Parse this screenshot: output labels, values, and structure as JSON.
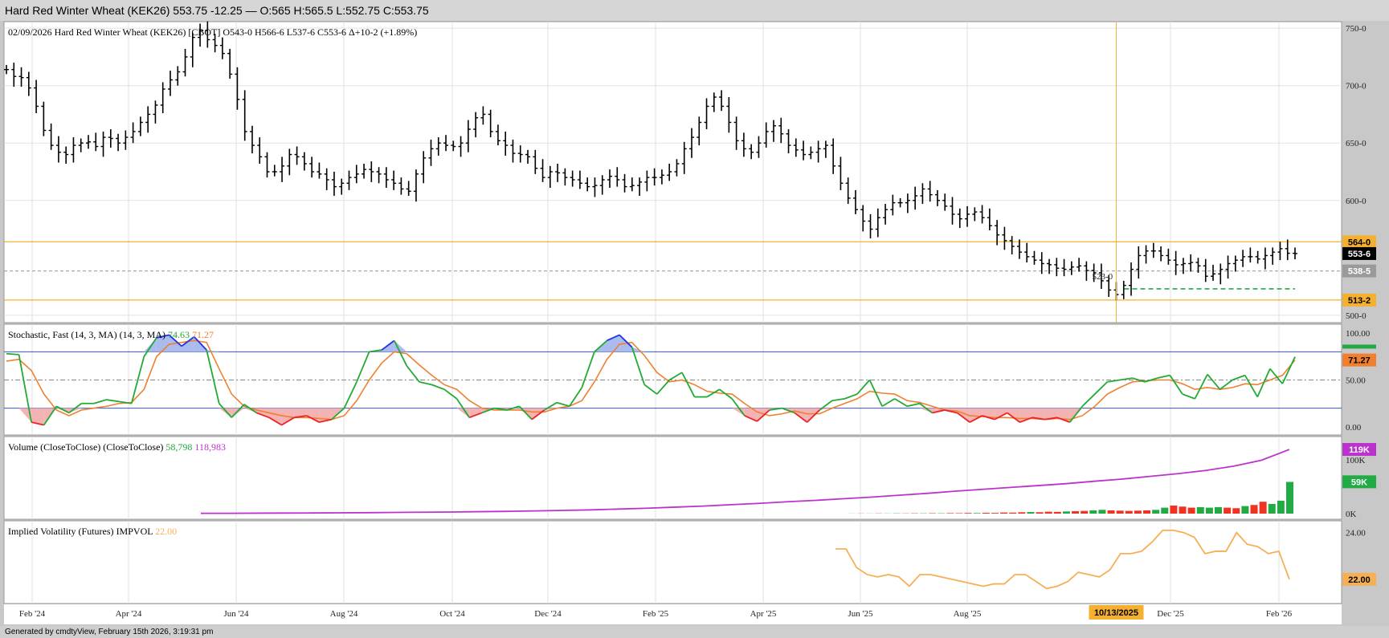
{
  "window": {
    "title": "Hard Red Winter Wheat (KEK26) 553.75 -12.25 — O:565 H:565.5 L:552.75 C:553.75"
  },
  "footer": {
    "generated": "Generated by cmdtyView, February 15th 2026, 3:19:31 pm"
  },
  "colors": {
    "up": "#22aa44",
    "down": "#ee3322",
    "stoch_k": "#22aa33",
    "stoch_d": "#f08030",
    "volume_ma": "#bb33cc",
    "impvol": "#f5b055",
    "level_line": "#f5b030",
    "band": "#3355cc"
  },
  "chart_data": [
    {
      "type": "ohlc",
      "title": "02/09/2026 Hard Red Winter Wheat (KEK26) [CBOT]",
      "header": {
        "date": "02/09/2026",
        "name": "Hard Red Winter Wheat (KEK26) [CBOT]",
        "open": "O543-0",
        "high": "H566-6",
        "low": "L537-6",
        "close": "C553-6",
        "change": "Δ+10-2 (+1.89%)"
      },
      "x_labels": [
        "Feb '24",
        "Apr '24",
        "Jun '24",
        "Aug '24",
        "Oct '24",
        "Dec '24",
        "Feb '25",
        "Apr '25",
        "Jun '25",
        "Aug '25",
        "Dec '25",
        "Feb '26"
      ],
      "y_ticks": [
        "750-0",
        "700-0",
        "650-0",
        "600-0",
        "500-0"
      ],
      "ylim": [
        495,
        755
      ],
      "price_tags": [
        {
          "label": "564-0",
          "value": 564.0,
          "style": "orange"
        },
        {
          "label": "553-6",
          "value": 553.75,
          "style": "black"
        },
        {
          "label": "538-5",
          "value": 538.6,
          "style": "gray"
        },
        {
          "label": "513-2",
          "value": 513.25,
          "style": "orange"
        }
      ],
      "horizontal_lines": [
        {
          "value": 564.0,
          "style": "orange"
        },
        {
          "value": 513.25,
          "style": "orange"
        },
        {
          "value": 538.6,
          "style": "gray-dashed"
        }
      ],
      "cursor_date": "10/13/2025",
      "annotation": "523-0",
      "weekly_closes": [
        714,
        708,
        707,
        698,
        682,
        661,
        648,
        642,
        640,
        648,
        650,
        651,
        647,
        655,
        654,
        650,
        655,
        660,
        668,
        675,
        683,
        697,
        705,
        712,
        725,
        742,
        748,
        740,
        735,
        728,
        710,
        688,
        660,
        648,
        638,
        625,
        625,
        630,
        640,
        638,
        632,
        625,
        623,
        618,
        612,
        615,
        620,
        623,
        627,
        625,
        623,
        618,
        615,
        610,
        608,
        623,
        637,
        645,
        650,
        648,
        647,
        650,
        662,
        672,
        675,
        660,
        652,
        648,
        641,
        640,
        638,
        628,
        620,
        625,
        624,
        620,
        618,
        615,
        612,
        613,
        618,
        621,
        618,
        612,
        613,
        616,
        620,
        620,
        622,
        625,
        632,
        645,
        655,
        668,
        682,
        690,
        682,
        668,
        652,
        645,
        642,
        650,
        660,
        665,
        658,
        648,
        644,
        640,
        642,
        645,
        648,
        630,
        615,
        602,
        592,
        582,
        575,
        585,
        592,
        598,
        598,
        600,
        604,
        610,
        605,
        600,
        595,
        588,
        584,
        588,
        590,
        585,
        578,
        570,
        565,
        560,
        555,
        551,
        548,
        545,
        544,
        541,
        540,
        542,
        543,
        539,
        537,
        530,
        522,
        518,
        526,
        540,
        552,
        556,
        556,
        552,
        548,
        544,
        545,
        546,
        543,
        534,
        536,
        540,
        545,
        548,
        551,
        551,
        549,
        552,
        555,
        558,
        554,
        553.75
      ]
    },
    {
      "type": "line",
      "title": "Stochastic, Fast (14, 3, MA)",
      "params": "(14, 3, MA)",
      "k_value": "74.63",
      "d_value": "71.27",
      "y_ticks": [
        "100.00",
        "50.00",
        "0.00"
      ],
      "ylim": [
        0,
        100
      ],
      "bands": [
        80,
        20
      ],
      "midline": 50,
      "tag": "71.27",
      "k_series": [
        78,
        77,
        5,
        2,
        22,
        15,
        25,
        25,
        29,
        27,
        25,
        75,
        95,
        98,
        86,
        96,
        82,
        25,
        10,
        24,
        15,
        10,
        2,
        10,
        12,
        5,
        8,
        20,
        48,
        80,
        82,
        92,
        65,
        48,
        45,
        40,
        30,
        10,
        15,
        20,
        18,
        22,
        8,
        18,
        26,
        22,
        42,
        80,
        92,
        98,
        85,
        45,
        35,
        50,
        58,
        32,
        32,
        40,
        30,
        12,
        6,
        18,
        20,
        15,
        5,
        18,
        28,
        30,
        35,
        50,
        22,
        30,
        22,
        25,
        15,
        18,
        15,
        5,
        12,
        8,
        15,
        5,
        10,
        8,
        10,
        5,
        22,
        35,
        48,
        50,
        52,
        48,
        52,
        55,
        35,
        30,
        56,
        40,
        50,
        55,
        32,
        62,
        46,
        74.63
      ],
      "d_series": [
        70,
        72,
        60,
        35,
        18,
        12,
        18,
        20,
        22,
        25,
        26,
        40,
        75,
        88,
        90,
        92,
        90,
        62,
        35,
        22,
        18,
        15,
        12,
        10,
        10,
        9,
        8,
        12,
        28,
        50,
        68,
        80,
        78,
        66,
        55,
        45,
        40,
        28,
        20,
        18,
        18,
        18,
        16,
        16,
        20,
        22,
        28,
        48,
        72,
        88,
        90,
        76,
        58,
        48,
        50,
        45,
        38,
        36,
        35,
        25,
        16,
        12,
        14,
        17,
        14,
        14,
        20,
        25,
        30,
        38,
        36,
        35,
        28,
        26,
        22,
        18,
        17,
        12,
        11,
        10,
        10,
        9,
        9,
        8,
        9,
        8,
        12,
        22,
        35,
        42,
        48,
        49,
        50,
        50,
        46,
        40,
        42,
        40,
        42,
        46,
        45,
        50,
        55,
        71.27
      ]
    },
    {
      "type": "bar",
      "title": "Volume (CloseToClose)",
      "params": "(CloseToClose)",
      "volume_value": "58,798",
      "ma_value": "118,983",
      "y_ticks": [
        "100K",
        "0K"
      ],
      "ylim": [
        0,
        125000
      ],
      "tags": [
        {
          "label": "119K",
          "value": 119000
        },
        {
          "label": "59K",
          "value": 59000
        }
      ],
      "bars": [
        [
          200,
          "up"
        ],
        [
          300,
          "down"
        ],
        [
          250,
          "up"
        ],
        [
          400,
          "down"
        ],
        [
          300,
          "up"
        ],
        [
          500,
          "up"
        ],
        [
          400,
          "down"
        ],
        [
          600,
          "down"
        ],
        [
          500,
          "up"
        ],
        [
          700,
          "down"
        ],
        [
          600,
          "up"
        ],
        [
          900,
          "down"
        ],
        [
          800,
          "down"
        ],
        [
          1200,
          "down"
        ],
        [
          1000,
          "up"
        ],
        [
          1500,
          "down"
        ],
        [
          1300,
          "down"
        ],
        [
          2000,
          "down"
        ],
        [
          1800,
          "down"
        ],
        [
          2500,
          "down"
        ],
        [
          3000,
          "up"
        ],
        [
          2600,
          "down"
        ],
        [
          3500,
          "down"
        ],
        [
          3200,
          "down"
        ],
        [
          4000,
          "up"
        ],
        [
          4500,
          "down"
        ],
        [
          5000,
          "down"
        ],
        [
          6000,
          "up"
        ],
        [
          7000,
          "up"
        ],
        [
          6000,
          "down"
        ],
        [
          5500,
          "down"
        ],
        [
          5000,
          "down"
        ],
        [
          5500,
          "down"
        ],
        [
          6000,
          "down"
        ],
        [
          7000,
          "up"
        ],
        [
          11000,
          "up"
        ],
        [
          15000,
          "down"
        ],
        [
          13000,
          "down"
        ],
        [
          11000,
          "down"
        ],
        [
          12000,
          "up"
        ],
        [
          11000,
          "up"
        ],
        [
          12000,
          "up"
        ],
        [
          11000,
          "down"
        ],
        [
          10000,
          "down"
        ],
        [
          14000,
          "up"
        ],
        [
          16000,
          "down"
        ],
        [
          22000,
          "down"
        ],
        [
          18000,
          "up"
        ],
        [
          24000,
          "up"
        ],
        [
          58798,
          "up"
        ]
      ],
      "ma_series": [
        500,
        600,
        800,
        1000,
        1200,
        1500,
        1800,
        2200,
        2600,
        3000,
        3600,
        4200,
        5000,
        6000,
        7000,
        8500,
        10000,
        12000,
        14000,
        16500,
        19000,
        22000,
        24500,
        27500,
        30500,
        34000,
        37500,
        41500,
        45000,
        48500,
        52000,
        55500,
        60000,
        64000,
        69000,
        74000,
        80000,
        88000,
        99000,
        118983
      ]
    },
    {
      "type": "line",
      "title": "Implied Volatility (Futures)",
      "name": "IMPVOL",
      "value": "22.00",
      "y_ticks": [
        "24.00"
      ],
      "ylim": [
        21.2,
        24.3
      ],
      "tag": "22.00",
      "series": [
        23.3,
        23.3,
        22.5,
        22.2,
        22.1,
        22.2,
        22.1,
        21.7,
        22.2,
        22.2,
        22.1,
        22.0,
        21.9,
        21.8,
        21.7,
        21.8,
        21.8,
        22.2,
        22.2,
        21.9,
        21.6,
        21.7,
        21.9,
        22.3,
        22.2,
        22.1,
        22.4,
        23.1,
        23.1,
        23.2,
        23.6,
        24.1,
        24.1,
        24.0,
        23.8,
        23.1,
        23.2,
        23.2,
        24.0,
        23.5,
        23.4,
        23.1,
        23.2,
        22.0
      ]
    }
  ]
}
